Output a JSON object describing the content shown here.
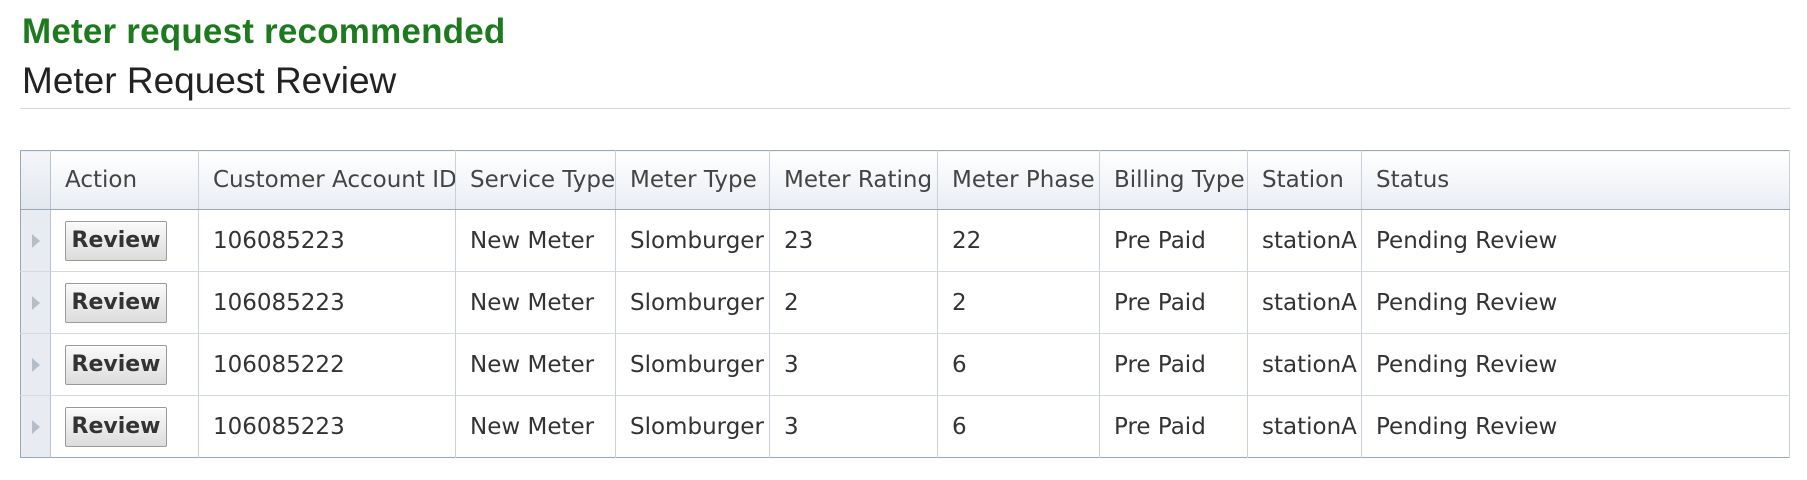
{
  "header": {
    "alert": "Meter request recommended",
    "title": "Meter Request Review"
  },
  "table": {
    "columns": [
      "Action",
      "Customer Account ID",
      "Service Type",
      "Meter Type",
      "Meter Rating",
      "Meter Phase",
      "Billing Type",
      "Station",
      "Status"
    ],
    "review_label": "Review",
    "rows": [
      {
        "account_id": "106085223",
        "service_type": "New Meter",
        "meter_type": "Slomburger",
        "meter_rating": "23",
        "meter_phase": "22",
        "billing_type": "Pre Paid",
        "station": "stationA",
        "status": "Pending Review"
      },
      {
        "account_id": "106085223",
        "service_type": "New Meter",
        "meter_type": "Slomburger",
        "meter_rating": "2",
        "meter_phase": "2",
        "billing_type": "Pre Paid",
        "station": "stationA",
        "status": "Pending Review"
      },
      {
        "account_id": "106085222",
        "service_type": "New Meter",
        "meter_type": "Slomburger",
        "meter_rating": "3",
        "meter_phase": "6",
        "billing_type": "Pre Paid",
        "station": "stationA",
        "status": "Pending Review"
      },
      {
        "account_id": "106085223",
        "service_type": "New Meter",
        "meter_type": "Slomburger",
        "meter_rating": "3",
        "meter_phase": "6",
        "billing_type": "Pre Paid",
        "station": "stationA",
        "status": "Pending Review"
      }
    ]
  },
  "colors": {
    "alert_green": "#1e7a1e",
    "grid_border": "#9aa7b8"
  }
}
